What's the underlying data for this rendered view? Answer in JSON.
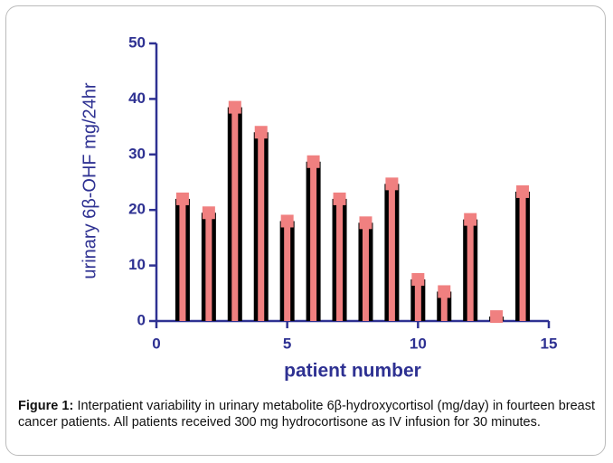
{
  "chart_data": {
    "type": "bar",
    "y_label": "urinary 6β-OHF mg/24hr",
    "x_label": "patient number",
    "x": [
      1,
      2,
      3,
      4,
      5,
      6,
      7,
      8,
      9,
      10,
      11,
      12,
      13,
      14
    ],
    "values": [
      22,
      19.5,
      38.5,
      34,
      18,
      28.7,
      22,
      17.7,
      24.7,
      7.5,
      5.3,
      18.3,
      0.8,
      23.3
    ],
    "color": "#f08080",
    "edge_color": "#000000",
    "axis_color": "#2e3192",
    "xlim": [
      0,
      15
    ],
    "xticks": [
      0,
      5,
      10,
      15
    ],
    "ylim": [
      0,
      50
    ],
    "yticks": [
      0,
      10,
      20,
      30,
      40,
      50
    ],
    "caption_label": "Figure 1:",
    "caption": "Interpatient variability in urinary metabolite 6β-hydroxycortisol (mg/day) in fourteen breast cancer patients. All patients received 300 mg hydrocortisone as IV infusion for 30 minutes."
  }
}
